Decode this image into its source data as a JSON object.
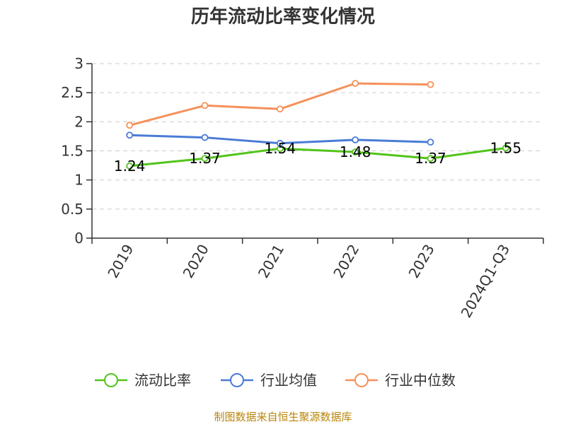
{
  "chart_data": {
    "type": "line",
    "title": "历年流动比率变化情况",
    "categories": [
      "2019",
      "2020",
      "2021",
      "2022",
      "2023",
      "2024Q1-Q3"
    ],
    "ylim": [
      0,
      3
    ],
    "yticks": [
      0,
      0.5,
      1,
      1.5,
      2,
      2.5,
      3
    ],
    "grid": true,
    "legend_position": "bottom",
    "series": [
      {
        "name": "流动比率",
        "color": "#52c41a",
        "values": [
          1.24,
          1.37,
          1.54,
          1.48,
          1.37,
          1.55
        ],
        "labels": [
          "1.24",
          "1.37",
          "1.54",
          "1.48",
          "1.37",
          "1.55"
        ]
      },
      {
        "name": "行业均值",
        "color": "#4a7bd6",
        "values": [
          1.77,
          1.73,
          1.63,
          1.69,
          1.65,
          null
        ]
      },
      {
        "name": "行业中位数",
        "color": "#f5915a",
        "values": [
          1.94,
          2.28,
          2.22,
          2.66,
          2.64,
          null
        ]
      }
    ]
  },
  "source": "制图数据来自恒生聚源数据库"
}
